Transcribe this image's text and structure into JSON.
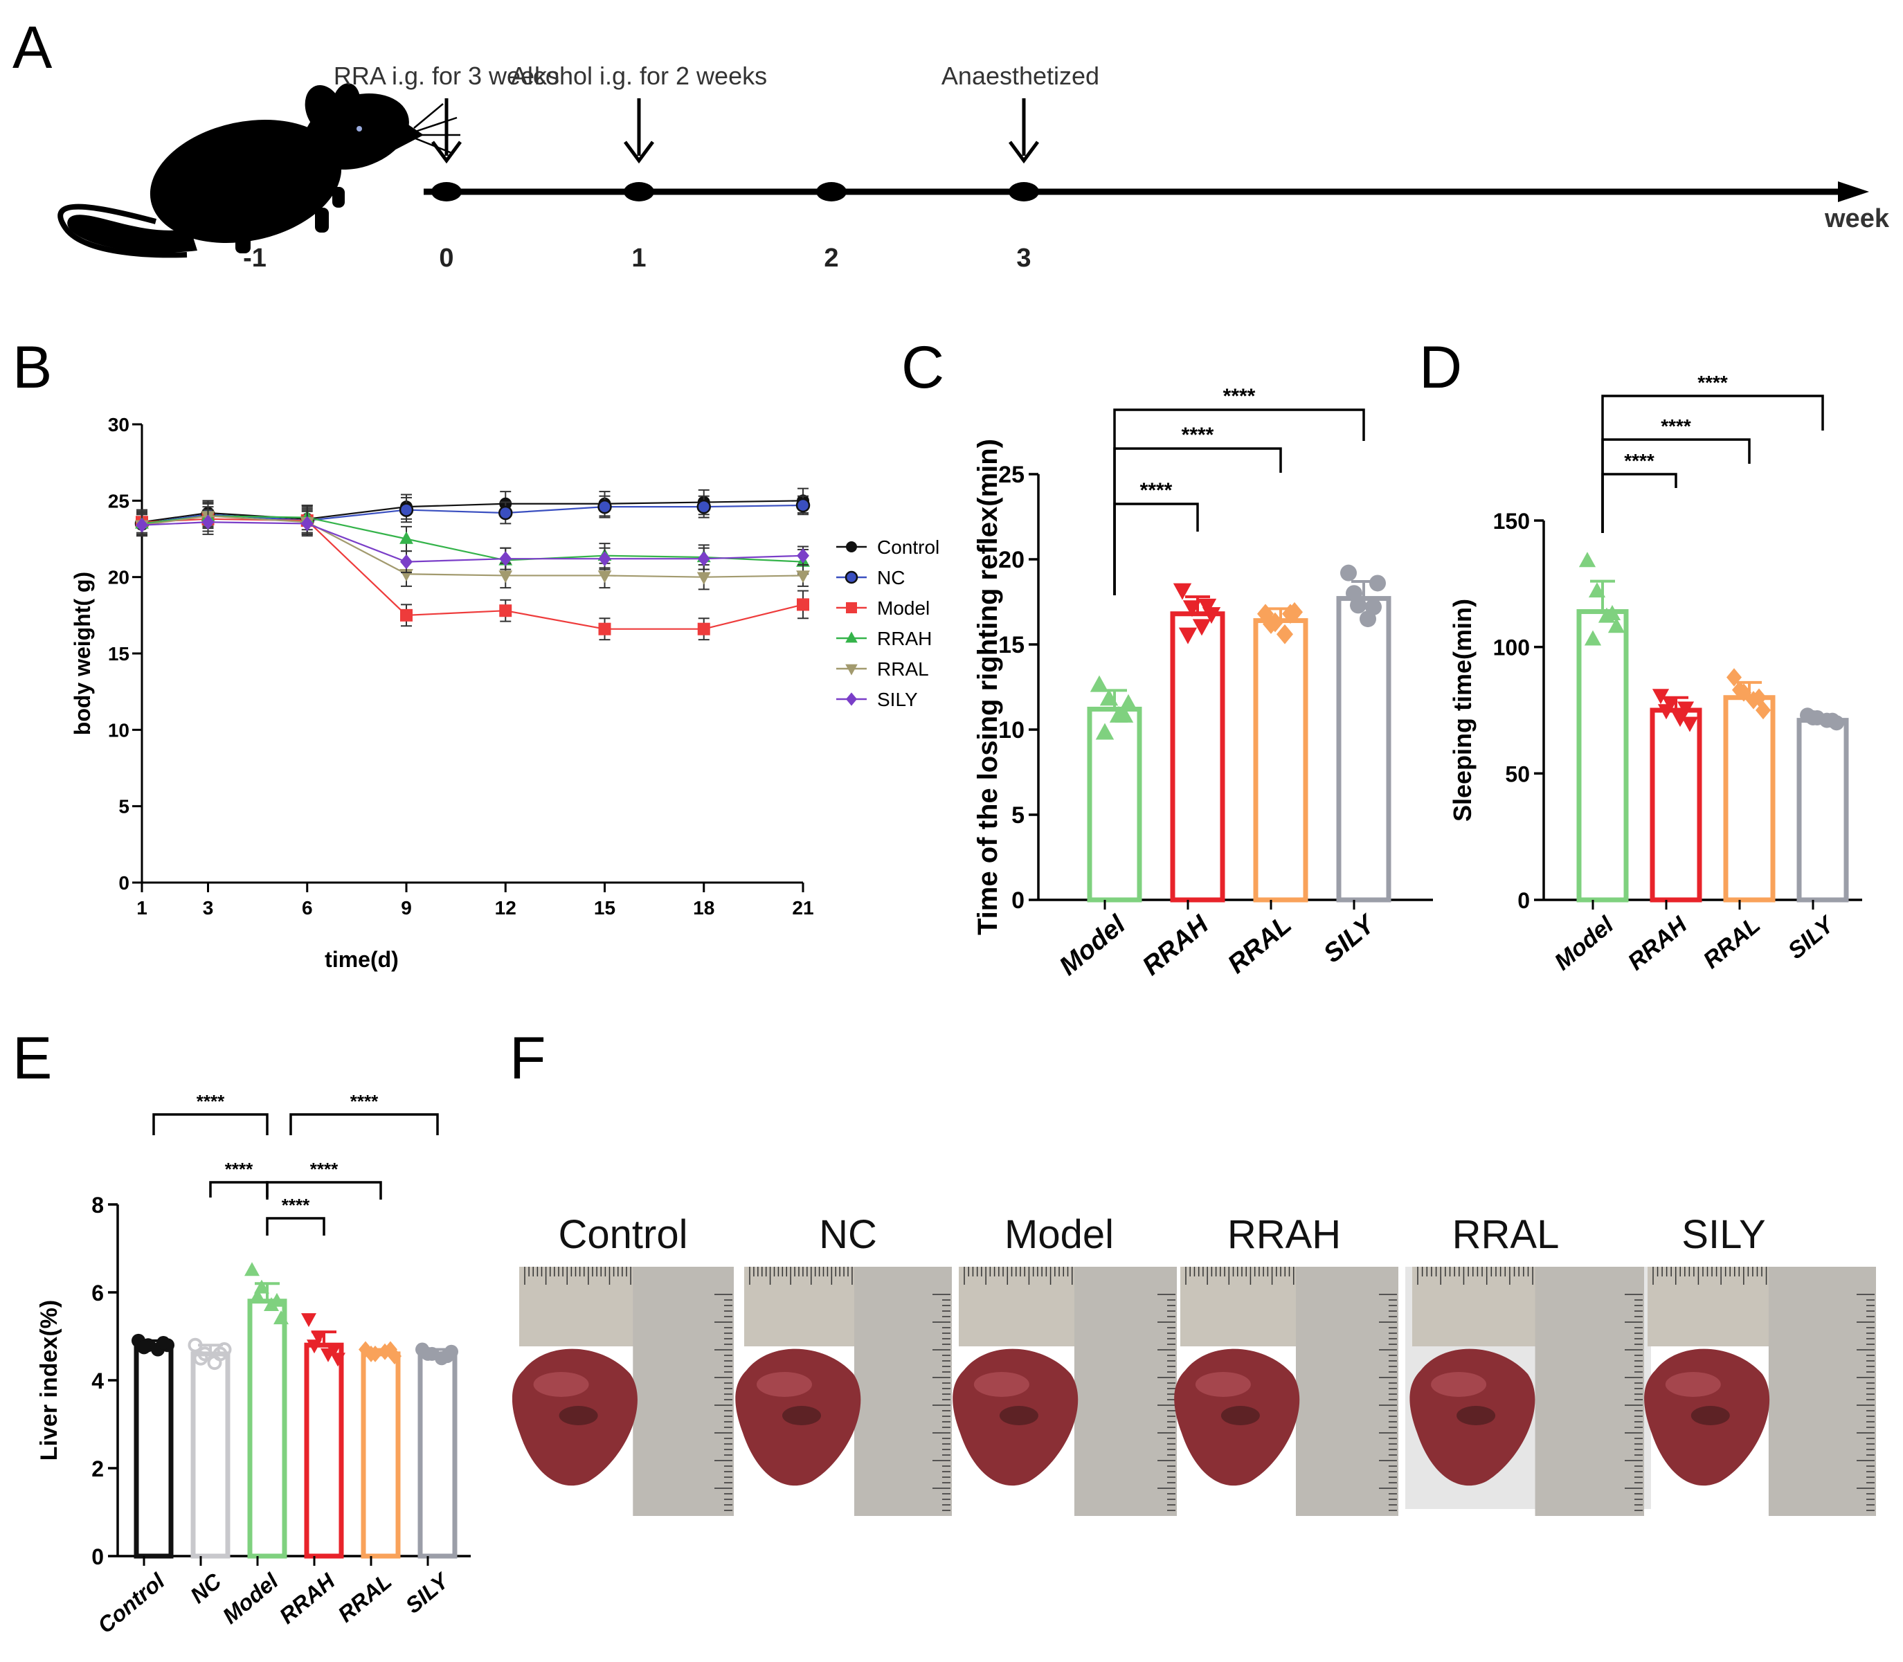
{
  "colors": {
    "Control": "#111111",
    "NC": "#3a4fc0",
    "Model": "#ee3b3b",
    "RRAH": "#34b34a",
    "RRAL": "#a29a6e",
    "SILY": "#7a3ec8",
    "bar_model": "#7fd17f",
    "bar_rrah": "#e8232a",
    "bar_rral": "#f9a25a",
    "bar_sily": "#9b9ea8",
    "bar_control": "#111111",
    "bar_nc": "#c8c8cc"
  },
  "panels": {
    "A": {
      "letter": "A",
      "events": [
        {
          "label": "RRA i.g. for 3 weeks",
          "week": 0
        },
        {
          "label": "Alcohol i.g. for 2 weeks",
          "week": 1
        },
        {
          "label": "Anaesthetized",
          "week": 3
        }
      ],
      "ticks": [
        "-1",
        "0",
        "1",
        "2",
        "3"
      ],
      "axis_label": "week",
      "icon": "mouse-icon"
    },
    "B": {
      "letter": "B"
    },
    "C": {
      "letter": "C"
    },
    "D": {
      "letter": "D"
    },
    "E": {
      "letter": "E"
    },
    "F": {
      "letter": "F",
      "photo_labels": [
        "Control",
        "NC",
        "Model",
        "RRAH",
        "RRAL",
        "SILY"
      ]
    }
  },
  "chart_data": [
    {
      "id": "B",
      "type": "line",
      "xlabel": "time(d)",
      "ylabel": "body weight( g)",
      "x": [
        1,
        3,
        6,
        9,
        12,
        15,
        18,
        21
      ],
      "xticks": [
        "1",
        "3",
        "6",
        "9",
        "12",
        "15",
        "18",
        "21"
      ],
      "ylim": [
        0,
        30
      ],
      "yticks": [
        "0",
        "5",
        "10",
        "15",
        "20",
        "25",
        "30"
      ],
      "legend": "right",
      "series": [
        {
          "name": "Control",
          "values": [
            23.6,
            24.2,
            23.8,
            24.6,
            24.8,
            24.8,
            24.9,
            25.0
          ],
          "err": [
            0.8,
            0.8,
            0.9,
            0.8,
            0.8,
            0.8,
            0.8,
            0.8
          ]
        },
        {
          "name": "NC",
          "values": [
            23.5,
            24.1,
            23.7,
            24.4,
            24.2,
            24.6,
            24.6,
            24.7
          ],
          "err": [
            0.8,
            0.8,
            0.9,
            0.8,
            0.7,
            0.7,
            0.7,
            0.6
          ]
        },
        {
          "name": "Model",
          "values": [
            23.6,
            23.8,
            23.7,
            17.5,
            17.8,
            16.6,
            16.6,
            18.2
          ],
          "err": [
            0.7,
            0.8,
            0.8,
            0.7,
            0.7,
            0.7,
            0.7,
            0.9
          ]
        },
        {
          "name": "RRAH",
          "values": [
            23.5,
            24.0,
            23.9,
            22.5,
            21.1,
            21.4,
            21.3,
            21.0
          ],
          "err": [
            0.7,
            0.8,
            0.8,
            0.8,
            0.8,
            0.8,
            0.8,
            0.8
          ]
        },
        {
          "name": "RRAL",
          "values": [
            23.4,
            24.0,
            23.6,
            20.2,
            20.1,
            20.1,
            20.0,
            20.1
          ],
          "err": [
            0.7,
            0.8,
            0.8,
            0.8,
            0.8,
            0.8,
            0.8,
            0.7
          ]
        },
        {
          "name": "SILY",
          "values": [
            23.4,
            23.6,
            23.5,
            21.0,
            21.2,
            21.2,
            21.2,
            21.4
          ],
          "err": [
            0.7,
            0.8,
            0.8,
            0.7,
            0.7,
            0.7,
            0.7,
            0.6
          ]
        }
      ]
    },
    {
      "id": "C",
      "type": "bar",
      "ylabel": "Time of the losing  righting reflex(min)",
      "categories": [
        "Model",
        "RRAH",
        "RRAL",
        "SILY"
      ],
      "values": [
        11.2,
        16.8,
        16.4,
        17.7
      ],
      "err": [
        1.1,
        1.0,
        0.7,
        1.0
      ],
      "points": [
        [
          12.6,
          11.8,
          10.8,
          11.5,
          9.8,
          10.8
        ],
        [
          18.2,
          17.2,
          16.1,
          16.8,
          15.6,
          17.3
        ],
        [
          16.8,
          16.3,
          15.6,
          16.9,
          16.2,
          16.8
        ],
        [
          19.2,
          17.3,
          16.5,
          18.6,
          18.0,
          17.2
        ]
      ],
      "ylim": [
        0,
        25
      ],
      "yticks": [
        "0",
        "5",
        "10",
        "15",
        "20",
        "25"
      ],
      "significance": [
        {
          "from": 0,
          "to": 1,
          "label": "****"
        },
        {
          "from": 0,
          "to": 2,
          "label": "****"
        },
        {
          "from": 0,
          "to": 3,
          "label": "****"
        }
      ]
    },
    {
      "id": "D",
      "type": "bar",
      "ylabel": "Sleeping time(min)",
      "categories": [
        "Model",
        "RRAH",
        "RRAL",
        "SILY"
      ],
      "values": [
        114,
        75,
        80,
        71
      ],
      "err": [
        12,
        5,
        6,
        2
      ],
      "points": [
        [
          134,
          122,
          112,
          108,
          103,
          113
        ],
        [
          81,
          78,
          72,
          70,
          75,
          76
        ],
        [
          88,
          82,
          79,
          75,
          83,
          80
        ],
        [
          73,
          72,
          71,
          70,
          72,
          71
        ]
      ],
      "ylim": [
        0,
        150
      ],
      "yticks": [
        "0",
        "50",
        "100",
        "150"
      ],
      "significance": [
        {
          "from": 0,
          "to": 1,
          "label": "****"
        },
        {
          "from": 0,
          "to": 2,
          "label": "****"
        },
        {
          "from": 0,
          "to": 3,
          "label": "****"
        }
      ]
    },
    {
      "id": "E",
      "type": "bar",
      "ylabel": "Liver index(%)",
      "categories": [
        "Control",
        "NC",
        "Model",
        "RRAH",
        "RRAL",
        "SILY"
      ],
      "values": [
        4.8,
        4.6,
        5.8,
        4.8,
        4.6,
        4.6
      ],
      "err": [
        0.1,
        0.2,
        0.4,
        0.3,
        0.1,
        0.1
      ],
      "points": [
        [
          4.9,
          4.8,
          4.7,
          4.8,
          4.75,
          4.85
        ],
        [
          4.8,
          4.6,
          4.4,
          4.7,
          4.5,
          4.6
        ],
        [
          6.5,
          6.1,
          5.7,
          5.4,
          5.9,
          5.8
        ],
        [
          5.4,
          5.0,
          4.6,
          4.5,
          4.8,
          4.7
        ],
        [
          4.7,
          4.6,
          4.65,
          4.55,
          4.6,
          4.7
        ],
        [
          4.7,
          4.6,
          4.5,
          4.65,
          4.6,
          4.55
        ]
      ],
      "ylim": [
        0,
        8
      ],
      "yticks": [
        "0",
        "2",
        "4",
        "6",
        "8"
      ],
      "significance": [
        {
          "from": 0,
          "to": 2,
          "label": "****"
        },
        {
          "from": 1,
          "to": 2,
          "label": "****"
        },
        {
          "from": 2,
          "to": 5,
          "label": "****"
        },
        {
          "from": 2,
          "to": 4,
          "label": "****"
        },
        {
          "from": 2,
          "to": 3,
          "label": "****"
        }
      ]
    }
  ]
}
